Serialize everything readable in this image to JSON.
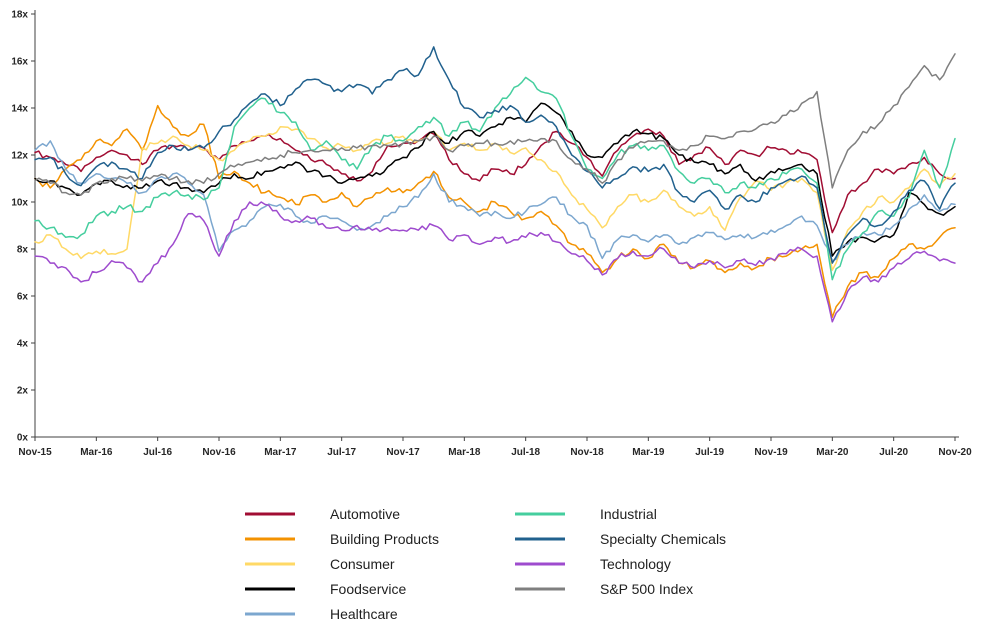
{
  "styles": {
    "background": "#FFFFFF",
    "axis_color": "#404040",
    "tick_text_color": "#262626",
    "legend_text_color": "#1F1F1F"
  },
  "chart_data": {
    "type": "line",
    "grid": false,
    "x_axis": {
      "start": "Nov-15",
      "end": "Nov-20",
      "points_per_series": 61,
      "tick_every_n_points": 4,
      "tick_labels": [
        "Nov-15",
        "Mar-16",
        "Jul-16",
        "Nov-16",
        "Mar-17",
        "Jul-17",
        "Nov-17",
        "Mar-18",
        "Jul-18",
        "Nov-18",
        "Mar-19",
        "Jul-19",
        "Nov-19",
        "Mar-20",
        "Jul-20",
        "Nov-20"
      ]
    },
    "y_axis": {
      "min": 0,
      "max": 18,
      "tick_step": 2,
      "tick_labels": [
        "0x",
        "2x",
        "4x",
        "6x",
        "8x",
        "10x",
        "12x",
        "14x",
        "16x",
        "18x"
      ]
    },
    "legend": {
      "position": "bottom",
      "columns": [
        [
          "Automotive",
          "Building Products",
          "Consumer",
          "Foodservice",
          "Healthcare"
        ],
        [
          "Industrial",
          "Specialty Chemicals",
          "Technology",
          "S&P 500 Index"
        ]
      ]
    },
    "series": [
      {
        "name": "Automotive",
        "color": "#A10D33",
        "values": [
          12.1,
          11.9,
          11.6,
          11.3,
          11.9,
          12.2,
          12.0,
          11.6,
          12.2,
          12.4,
          12.2,
          12.3,
          11.8,
          12.4,
          12.6,
          12.8,
          12.7,
          12.2,
          11.8,
          11.6,
          11.2,
          10.9,
          11.3,
          12.4,
          12.5,
          12.6,
          12.9,
          11.8,
          11.2,
          10.9,
          11.4,
          11.2,
          11.6,
          12.4,
          13.0,
          12.5,
          11.9,
          11.1,
          12.2,
          12.8,
          13.1,
          12.8,
          11.6,
          12.0,
          12.3,
          11.6,
          12.2,
          12.0,
          12.3,
          12.2,
          12.1,
          11.8,
          8.7,
          10.3,
          10.8,
          11.4,
          11.2,
          11.6,
          11.9,
          11.2,
          11.0
        ]
      },
      {
        "name": "Building Products",
        "color": "#F39200",
        "values": [
          11.0,
          10.6,
          11.4,
          11.8,
          12.6,
          12.4,
          13.1,
          12.2,
          14.1,
          13.2,
          12.8,
          13.3,
          11.0,
          11.3,
          10.8,
          10.4,
          10.2,
          9.9,
          10.3,
          10.0,
          10.4,
          9.8,
          10.2,
          10.6,
          10.4,
          10.8,
          11.3,
          10.2,
          10.0,
          9.6,
          10.0,
          9.6,
          9.3,
          9.6,
          9.0,
          8.2,
          7.8,
          7.0,
          7.6,
          8.0,
          7.6,
          8.2,
          7.4,
          7.2,
          7.5,
          7.0,
          7.4,
          7.2,
          7.6,
          7.7,
          8.0,
          8.2,
          5.1,
          6.4,
          7.0,
          6.8,
          7.6,
          8.2,
          8.0,
          8.5,
          8.9
        ]
      },
      {
        "name": "Consumer",
        "color": "#FFD966",
        "values": [
          8.3,
          8.6,
          8.0,
          7.6,
          7.9,
          7.8,
          8.0,
          12.3,
          12.5,
          12.8,
          12.4,
          12.2,
          11.8,
          12.2,
          12.6,
          12.8,
          13.2,
          13.1,
          12.7,
          12.3,
          12.4,
          12.2,
          12.6,
          12.5,
          12.8,
          12.6,
          13.0,
          12.2,
          12.5,
          12.2,
          12.5,
          12.1,
          12.3,
          11.8,
          11.3,
          10.3,
          9.7,
          8.9,
          9.8,
          10.3,
          10.0,
          10.5,
          9.8,
          9.4,
          9.8,
          8.8,
          10.2,
          10.9,
          10.5,
          10.8,
          11.0,
          10.4,
          7.1,
          8.8,
          9.6,
          10.2,
          10.0,
          10.6,
          11.4,
          10.7,
          11.2
        ]
      },
      {
        "name": "Foodservice",
        "color": "#000000",
        "values": [
          11.0,
          10.9,
          10.6,
          10.3,
          10.8,
          10.9,
          10.7,
          10.6,
          10.9,
          10.8,
          10.6,
          10.4,
          10.8,
          11.2,
          11.0,
          11.3,
          11.5,
          11.7,
          11.3,
          11.1,
          10.8,
          11.0,
          11.1,
          11.5,
          11.9,
          12.3,
          13.0,
          12.5,
          13.0,
          12.8,
          13.2,
          13.6,
          13.4,
          14.2,
          13.8,
          13.0,
          12.0,
          11.9,
          12.5,
          13.0,
          12.9,
          12.7,
          12.0,
          11.7,
          11.6,
          11.2,
          11.6,
          10.9,
          11.3,
          11.4,
          11.6,
          11.2,
          7.7,
          8.3,
          8.5,
          8.4,
          8.6,
          10.4,
          9.9,
          9.5,
          9.8
        ]
      },
      {
        "name": "Healthcare",
        "color": "#7CA7CF",
        "values": [
          12.2,
          12.6,
          11.4,
          10.8,
          11.2,
          11.0,
          10.8,
          10.4,
          11.0,
          11.2,
          10.8,
          10.3,
          7.9,
          8.8,
          9.2,
          9.8,
          9.9,
          9.4,
          9.1,
          9.4,
          9.2,
          8.8,
          9.0,
          9.4,
          9.8,
          10.2,
          11.2,
          10.0,
          9.8,
          9.4,
          9.6,
          9.3,
          9.6,
          9.9,
          10.2,
          9.4,
          9.0,
          7.6,
          8.4,
          8.6,
          8.3,
          8.6,
          8.2,
          8.5,
          8.7,
          8.4,
          8.6,
          8.5,
          8.8,
          9.0,
          9.4,
          9.0,
          7.5,
          8.2,
          8.7,
          8.6,
          9.0,
          9.7,
          10.3,
          9.6,
          9.9
        ]
      },
      {
        "name": "Industrial",
        "color": "#45CE9E",
        "values": [
          9.2,
          8.9,
          8.5,
          8.6,
          9.4,
          9.6,
          9.8,
          9.6,
          10.2,
          10.4,
          10.3,
          10.1,
          10.6,
          13.2,
          14.0,
          14.4,
          13.8,
          13.4,
          12.2,
          12.6,
          11.8,
          11.4,
          12.4,
          12.8,
          12.6,
          13.2,
          13.6,
          12.8,
          13.4,
          13.0,
          14.0,
          14.6,
          15.3,
          14.7,
          14.4,
          12.8,
          11.4,
          11.0,
          12.0,
          12.4,
          12.2,
          12.4,
          11.3,
          10.8,
          11.0,
          10.4,
          10.8,
          10.6,
          11.0,
          11.2,
          11.4,
          10.8,
          6.7,
          8.0,
          8.7,
          9.6,
          9.4,
          10.2,
          12.2,
          10.6,
          12.7
        ]
      },
      {
        "name": "Specialty Chemicals",
        "color": "#21618E",
        "values": [
          11.8,
          11.9,
          11.2,
          10.7,
          11.5,
          11.7,
          11.4,
          11.0,
          12.1,
          12.4,
          12.2,
          12.3,
          13.0,
          13.5,
          14.2,
          14.6,
          14.1,
          14.8,
          15.2,
          15.0,
          14.7,
          15.0,
          14.6,
          15.2,
          15.6,
          15.4,
          16.6,
          15.2,
          14.0,
          13.6,
          13.9,
          14.1,
          13.4,
          13.7,
          13.2,
          12.0,
          11.3,
          10.6,
          11.0,
          11.5,
          11.3,
          11.6,
          10.4,
          10.0,
          10.5,
          9.7,
          10.3,
          10.0,
          10.6,
          10.9,
          11.1,
          10.6,
          7.4,
          8.6,
          9.3,
          9.0,
          9.6,
          10.5,
          10.9,
          9.7,
          10.8
        ]
      },
      {
        "name": "Technology",
        "color": "#9E4BCE",
        "values": [
          7.7,
          7.4,
          7.2,
          6.6,
          7.0,
          7.5,
          7.2,
          6.6,
          7.4,
          8.2,
          9.5,
          9.2,
          7.7,
          9.2,
          10.0,
          9.9,
          9.4,
          9.2,
          9.3,
          8.9,
          8.8,
          9.0,
          8.8,
          8.9,
          8.8,
          8.8,
          9.0,
          8.4,
          8.6,
          8.2,
          8.5,
          8.3,
          8.5,
          8.7,
          8.3,
          7.8,
          7.5,
          6.9,
          7.6,
          7.9,
          7.7,
          8.0,
          7.4,
          7.2,
          7.5,
          7.2,
          7.5,
          7.3,
          7.6,
          7.8,
          8.0,
          7.7,
          4.9,
          6.2,
          6.8,
          6.6,
          7.2,
          7.6,
          7.9,
          7.5,
          7.4
        ]
      },
      {
        "name": "S&P 500 Index",
        "color": "#7F7F7F",
        "values": [
          10.9,
          10.8,
          10.4,
          10.3,
          10.8,
          11.0,
          11.0,
          10.9,
          11.1,
          11.0,
          10.9,
          10.8,
          11.2,
          11.5,
          11.7,
          11.9,
          12.0,
          12.1,
          12.2,
          12.2,
          12.3,
          12.3,
          12.4,
          12.4,
          12.5,
          12.6,
          12.8,
          12.2,
          12.4,
          12.5,
          12.5,
          12.6,
          12.6,
          12.7,
          12.6,
          11.8,
          11.4,
          10.8,
          11.8,
          12.3,
          12.6,
          12.6,
          12.2,
          12.4,
          12.8,
          12.7,
          13.0,
          13.1,
          13.4,
          13.7,
          14.2,
          14.7,
          10.6,
          12.2,
          13.0,
          13.3,
          14.1,
          14.9,
          15.8,
          15.2,
          16.3
        ]
      }
    ]
  }
}
